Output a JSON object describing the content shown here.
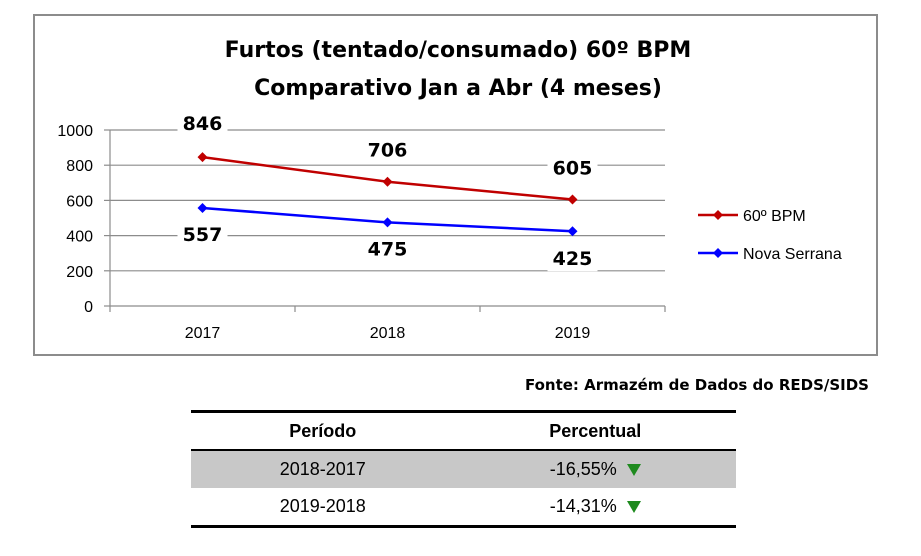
{
  "chart_data": {
    "type": "line",
    "title": "Furtos (tentado/consumado) 60º BPM",
    "subtitle": "Comparativo Jan a Abr (4 meses)",
    "categories": [
      "2017",
      "2018",
      "2019"
    ],
    "ylim": [
      0,
      1000
    ],
    "yticks": [
      0,
      200,
      400,
      600,
      800,
      1000
    ],
    "grid": true,
    "legend_position": "right",
    "series": [
      {
        "name": "60º BPM",
        "color": "#c00000",
        "marker": "diamond",
        "values": [
          846,
          706,
          605
        ],
        "labels": [
          "846",
          "706",
          "605"
        ]
      },
      {
        "name": "Nova Serrana",
        "color": "#0000ff",
        "marker": "diamond",
        "values": [
          557,
          475,
          425
        ],
        "labels": [
          "557",
          "475",
          "425"
        ]
      }
    ]
  },
  "source_note": "Fonte: Armazém de Dados do REDS/SIDS",
  "table": {
    "headers": {
      "period": "Período",
      "percent": "Percentual"
    },
    "rows": [
      {
        "period": "2018-2017",
        "percent": "-16,55%",
        "trend": "down"
      },
      {
        "period": "2019-2018",
        "percent": "-14,31%",
        "trend": "down"
      }
    ],
    "trend_color": "#1e8a1e"
  }
}
